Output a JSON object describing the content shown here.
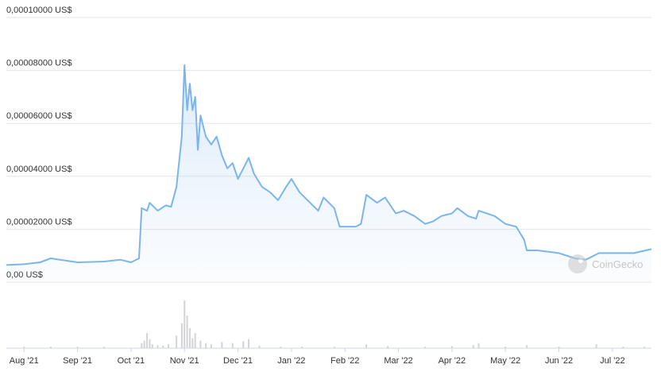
{
  "chart_data": {
    "type": "area",
    "watermark": "CoinGecko",
    "xlim": [
      7.67,
      19.73
    ],
    "xticks": [
      {
        "value": 8,
        "label": "Aug '21"
      },
      {
        "value": 9,
        "label": "Sep '21"
      },
      {
        "value": 10,
        "label": "Oct '21"
      },
      {
        "value": 11,
        "label": "Nov '21"
      },
      {
        "value": 12,
        "label": "Dec '21"
      },
      {
        "value": 13,
        "label": "Jan '22"
      },
      {
        "value": 14,
        "label": "Feb '22"
      },
      {
        "value": 15,
        "label": "Mar '22"
      },
      {
        "value": 16,
        "label": "Apr '22"
      },
      {
        "value": 17,
        "label": "May '22"
      },
      {
        "value": 18,
        "label": "Jun '22"
      },
      {
        "value": 19,
        "label": "Jul '22"
      }
    ],
    "ylim": [
      0,
      0.0001
    ],
    "yticks": [
      {
        "value": 0,
        "label": "0,00 US$"
      },
      {
        "value": 2e-05,
        "label": "0,00002000 US$"
      },
      {
        "value": 4e-05,
        "label": "0,00004000 US$"
      },
      {
        "value": 6e-05,
        "label": "0,00006000 US$"
      },
      {
        "value": 8e-05,
        "label": "0,00008000 US$"
      },
      {
        "value": 0.0001,
        "label": "0,00010000 US$"
      }
    ],
    "grid": true,
    "series": [
      {
        "color": "#7cb5ec",
        "x": [
          7.67,
          8.0,
          8.3,
          8.5,
          9.0,
          9.5,
          9.8,
          10.0,
          10.15,
          10.2,
          10.3,
          10.35,
          10.5,
          10.65,
          10.75,
          10.85,
          10.95,
          11.0,
          11.05,
          11.1,
          11.15,
          11.2,
          11.25,
          11.3,
          11.4,
          11.5,
          11.6,
          11.7,
          11.8,
          11.9,
          12.0,
          12.1,
          12.2,
          12.3,
          12.45,
          12.6,
          12.75,
          12.9,
          13.0,
          13.15,
          13.35,
          13.5,
          13.6,
          13.8,
          13.9,
          14.2,
          14.3,
          14.4,
          14.6,
          14.75,
          14.95,
          15.1,
          15.3,
          15.5,
          15.65,
          15.8,
          16.0,
          16.1,
          16.3,
          16.45,
          16.5,
          16.8,
          17.0,
          17.2,
          17.35,
          17.4,
          17.6,
          18.0,
          18.3,
          18.5,
          18.75,
          19.0,
          19.4,
          19.73
        ],
        "values": [
          6.5e-06,
          6.8e-06,
          7.5e-06,
          9e-06,
          7.5e-06,
          7.8e-06,
          8.5e-06,
          7.5e-06,
          9e-06,
          2.8e-05,
          2.7e-05,
          3e-05,
          2.7e-05,
          2.9e-05,
          2.85e-05,
          3.6e-05,
          5.5e-05,
          8.2e-05,
          6.5e-05,
          7.5e-05,
          6.5e-05,
          7e-05,
          5e-05,
          6.3e-05,
          5.5e-05,
          5.2e-05,
          5.5e-05,
          4.8e-05,
          4.3e-05,
          4.5e-05,
          3.9e-05,
          4.3e-05,
          4.7e-05,
          4.1e-05,
          3.6e-05,
          3.4e-05,
          3.1e-05,
          3.6e-05,
          3.9e-05,
          3.4e-05,
          3e-05,
          2.7e-05,
          3.2e-05,
          2.8e-05,
          2.1e-05,
          2.1e-05,
          2.2e-05,
          3.3e-05,
          3e-05,
          3.2e-05,
          2.6e-05,
          2.7e-05,
          2.5e-05,
          2.2e-05,
          2.3e-05,
          2.5e-05,
          2.6e-05,
          2.8e-05,
          2.5e-05,
          2.4e-05,
          2.7e-05,
          2.5e-05,
          2.2e-05,
          2.1e-05,
          1.6e-05,
          1.2e-05,
          1.2e-05,
          1.1e-05,
          9e-06,
          8.5e-06,
          1.1e-05,
          1.1e-05,
          1.1e-05,
          1.25e-05
        ]
      }
    ],
    "volume": {
      "color": "#d3d3d8",
      "ylim": [
        0,
        100
      ],
      "x": [
        8.0,
        8.5,
        9.0,
        9.5,
        10.2,
        10.25,
        10.3,
        10.35,
        10.4,
        10.5,
        10.6,
        10.7,
        10.85,
        10.95,
        11.0,
        11.05,
        11.1,
        11.15,
        11.2,
        11.3,
        11.4,
        11.5,
        11.7,
        11.9,
        12.1,
        12.2,
        12.4,
        12.8,
        13.2,
        13.8,
        14.4,
        14.8,
        15.5,
        16.0,
        16.4,
        16.5,
        17.0,
        17.4,
        18.0,
        18.7,
        19.2,
        19.6
      ],
      "values": [
        3,
        3,
        3,
        3,
        10,
        15,
        30,
        18,
        8,
        6,
        5,
        8,
        25,
        50,
        95,
        65,
        40,
        20,
        30,
        15,
        10,
        8,
        12,
        10,
        14,
        18,
        5,
        3,
        3,
        3,
        8,
        4,
        3,
        4,
        6,
        10,
        3,
        6,
        3,
        8,
        3,
        3
      ]
    }
  }
}
